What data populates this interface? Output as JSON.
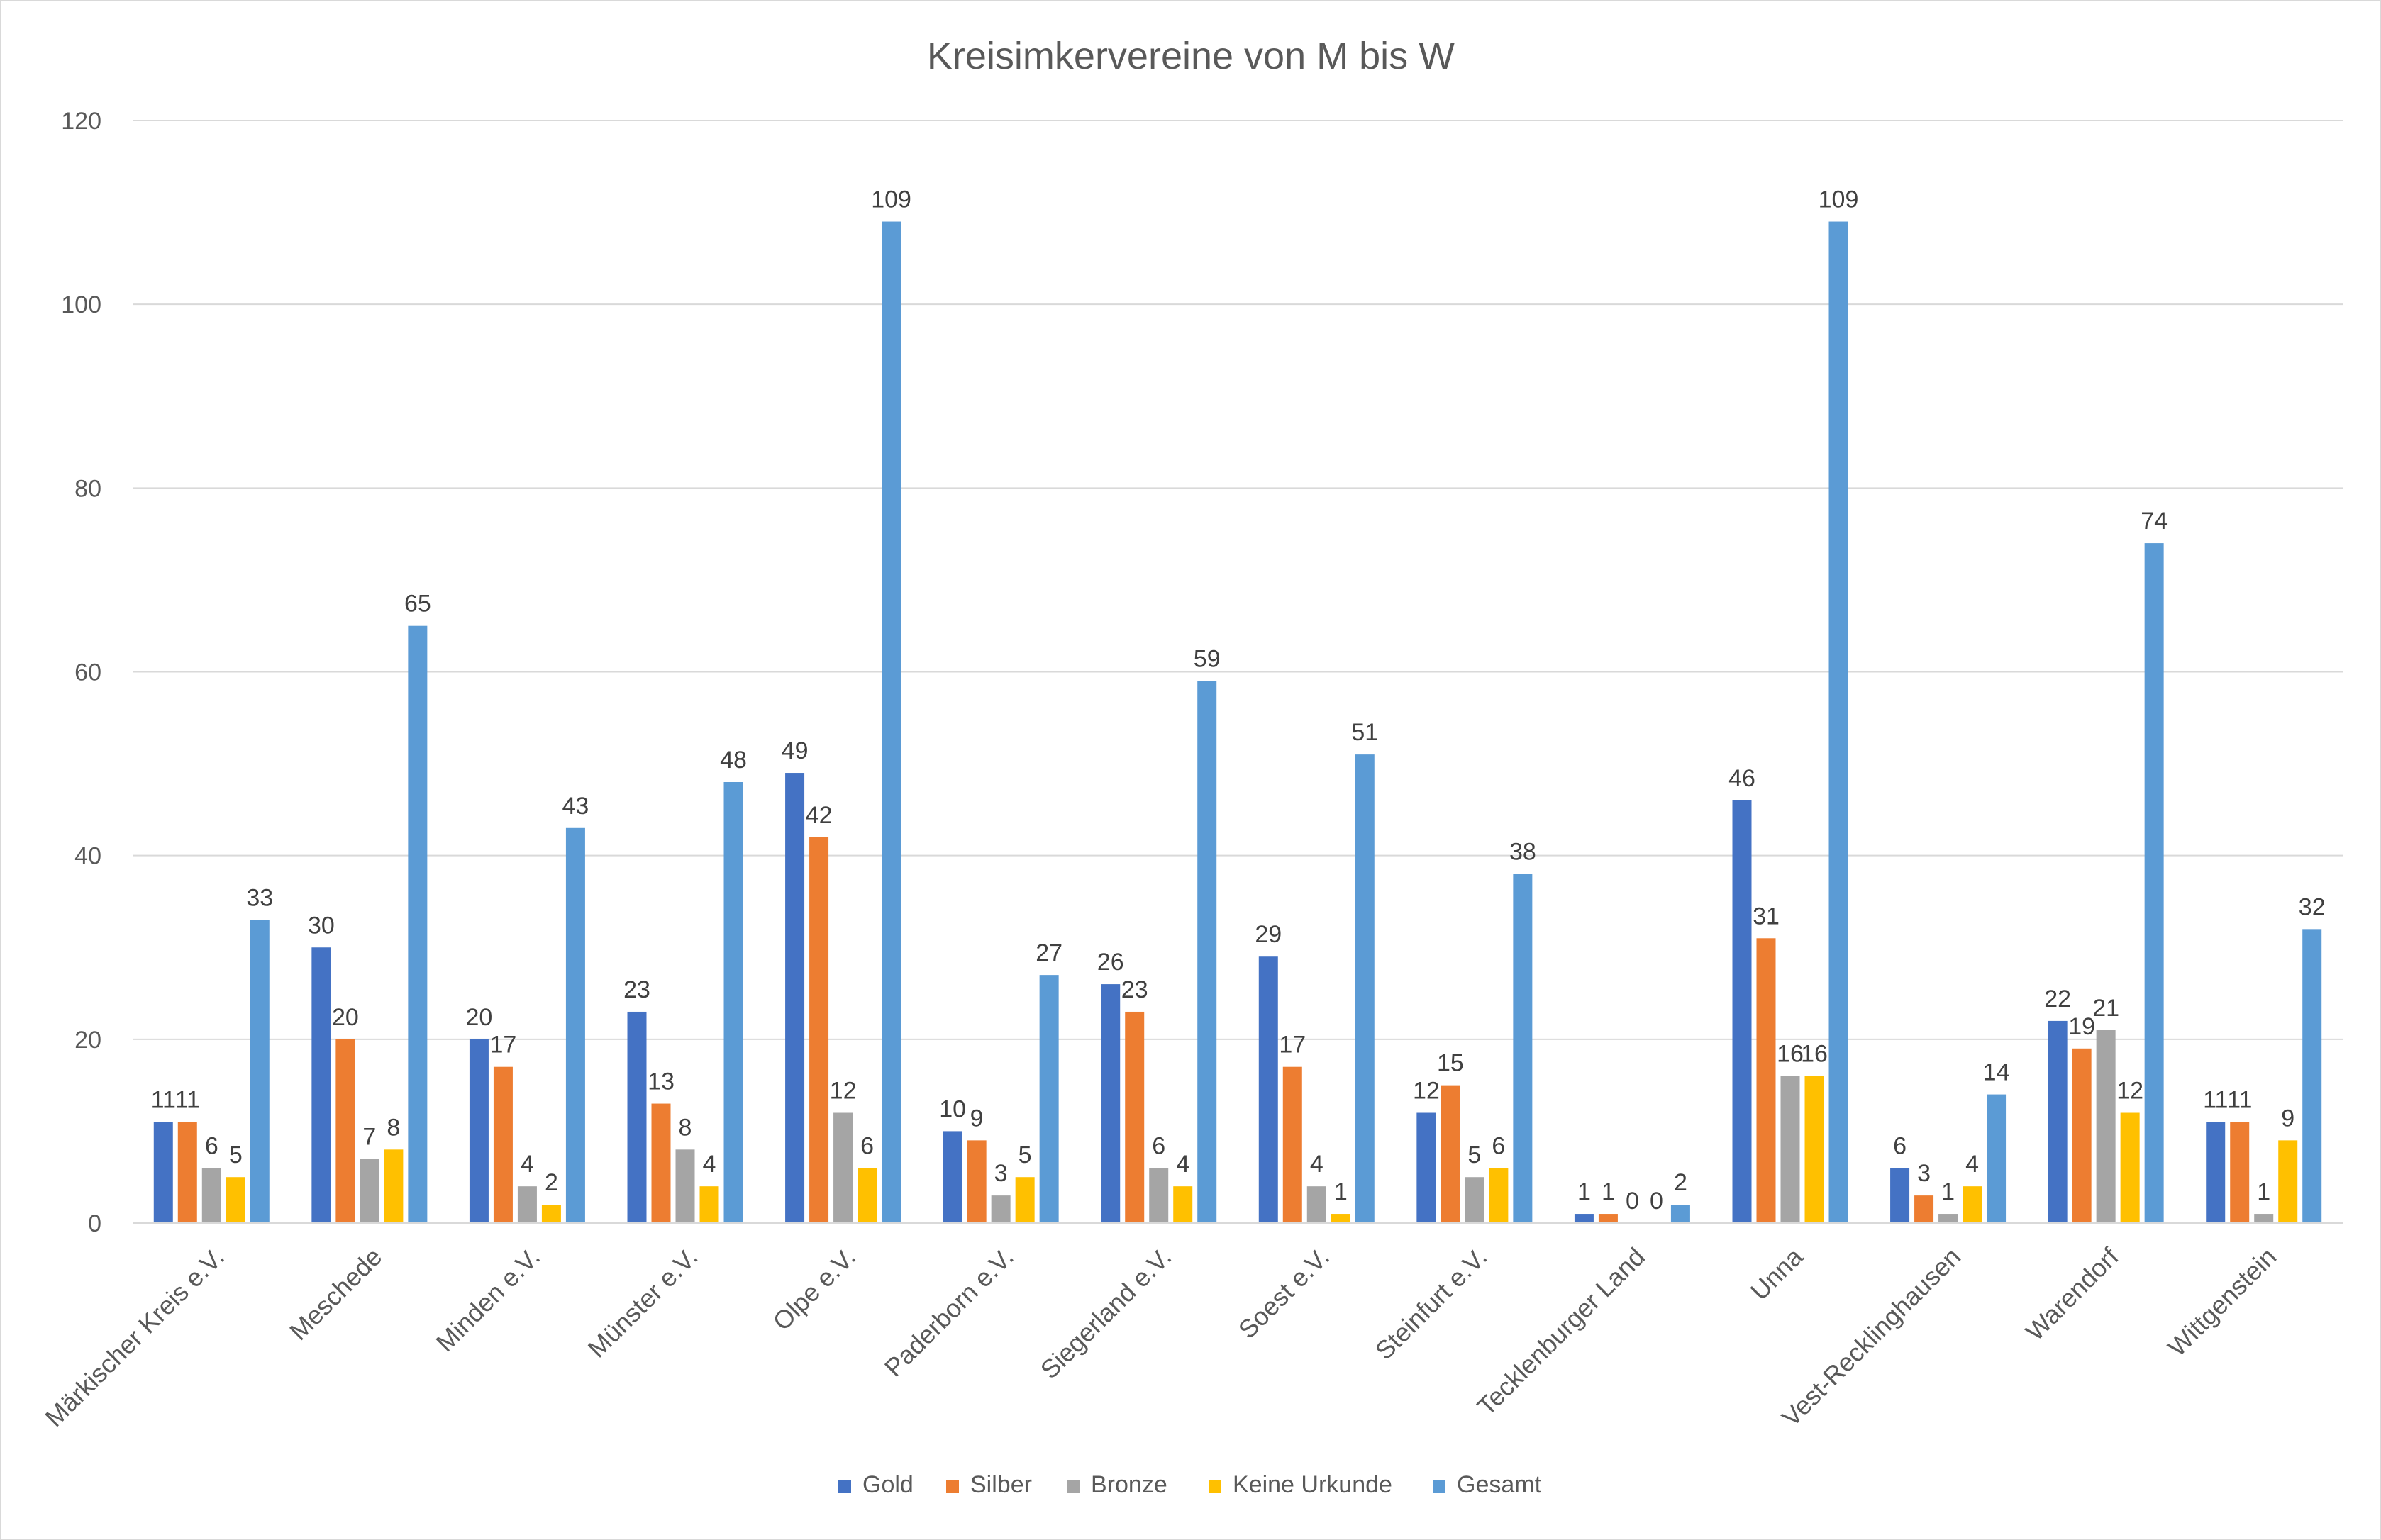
{
  "chart_data": {
    "type": "bar",
    "title": "Kreisimkervereine von M bis W",
    "categories": [
      "Märkischer Kreis e.V.",
      "Meschede",
      "Minden e.V.",
      "Münster e.V.",
      "Olpe e.V.",
      "Paderborn e.V.",
      "Siegerland e.V.",
      "Soest e.V.",
      "Steinfurt e.V.",
      "Tecklenburger Land",
      "Unna",
      "Vest-Recklinghausen",
      "Warendorf",
      "Wittgenstein"
    ],
    "series": [
      {
        "name": "Gold",
        "color": "#4472C4",
        "values": [
          11,
          30,
          20,
          23,
          49,
          10,
          26,
          29,
          12,
          1,
          46,
          6,
          22,
          11
        ]
      },
      {
        "name": "Silber",
        "color": "#ED7D31",
        "values": [
          11,
          20,
          17,
          13,
          42,
          9,
          23,
          17,
          15,
          1,
          31,
          3,
          19,
          11
        ]
      },
      {
        "name": "Bronze",
        "color": "#A5A5A5",
        "values": [
          6,
          7,
          4,
          8,
          12,
          3,
          6,
          4,
          5,
          0,
          16,
          1,
          21,
          1
        ]
      },
      {
        "name": "Keine Urkunde",
        "color": "#FFC000",
        "values": [
          5,
          8,
          2,
          4,
          6,
          5,
          4,
          1,
          6,
          0,
          16,
          4,
          12,
          9
        ]
      },
      {
        "name": "Gesamt",
        "color": "#5B9BD5",
        "values": [
          33,
          65,
          43,
          48,
          109,
          27,
          59,
          51,
          38,
          2,
          109,
          14,
          74,
          32
        ]
      }
    ],
    "ylim": [
      0,
      120
    ],
    "yticks": [
      "0",
      "20",
      "40",
      "60",
      "80",
      "100",
      "120"
    ],
    "grid": true,
    "legend_position": "bottom",
    "gridline_color": "#d9d9d9"
  }
}
